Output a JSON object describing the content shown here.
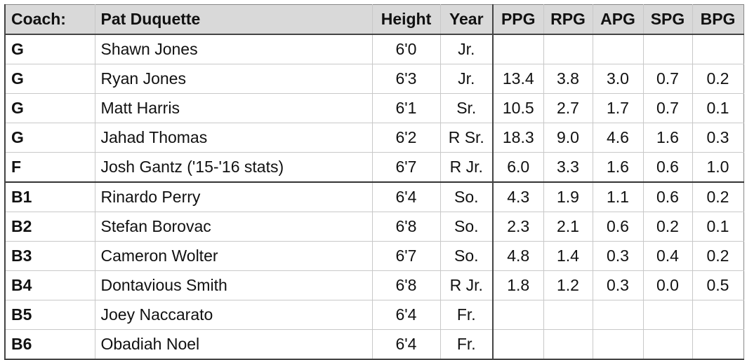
{
  "header": {
    "coach_label": "Coach:",
    "coach_name": "Pat Duquette",
    "height": "Height",
    "year": "Year",
    "stats": [
      "PPG",
      "RPG",
      "APG",
      "SPG",
      "BPG"
    ]
  },
  "players": [
    {
      "pos": "G",
      "name": "Shawn Jones",
      "height": "6'0",
      "year": "Jr.",
      "stats": [
        "",
        "",
        "",
        "",
        ""
      ]
    },
    {
      "pos": "G",
      "name": "Ryan Jones",
      "height": "6'3",
      "year": "Jr.",
      "stats": [
        "13.4",
        "3.8",
        "3.0",
        "0.7",
        "0.2"
      ]
    },
    {
      "pos": "G",
      "name": "Matt Harris",
      "height": "6'1",
      "year": "Sr.",
      "stats": [
        "10.5",
        "2.7",
        "1.7",
        "0.7",
        "0.1"
      ]
    },
    {
      "pos": "G",
      "name": "Jahad Thomas",
      "height": "6'2",
      "year": "R Sr.",
      "stats": [
        "18.3",
        "9.0",
        "4.6",
        "1.6",
        "0.3"
      ]
    },
    {
      "pos": "F",
      "name": "Josh Gantz ('15-'16 stats)",
      "height": "6'7",
      "year": "R Jr.",
      "stats": [
        "6.0",
        "3.3",
        "1.6",
        "0.6",
        "1.0"
      ]
    },
    {
      "pos": "B1",
      "name": "Rinardo Perry",
      "height": "6'4",
      "year": "So.",
      "stats": [
        "4.3",
        "1.9",
        "1.1",
        "0.6",
        "0.2"
      ]
    },
    {
      "pos": "B2",
      "name": "Stefan Borovac",
      "height": "6'8",
      "year": "So.",
      "stats": [
        "2.3",
        "2.1",
        "0.6",
        "0.2",
        "0.1"
      ]
    },
    {
      "pos": "B3",
      "name": "Cameron Wolter",
      "height": "6'7",
      "year": "So.",
      "stats": [
        "4.8",
        "1.4",
        "0.3",
        "0.4",
        "0.2"
      ]
    },
    {
      "pos": "B4",
      "name": "Dontavious Smith",
      "height": "6'8",
      "year": "R Jr.",
      "stats": [
        "1.8",
        "1.2",
        "0.3",
        "0.0",
        "0.5"
      ]
    },
    {
      "pos": "B5",
      "name": "Joey Naccarato",
      "height": "6'4",
      "year": "Fr.",
      "stats": [
        "",
        "",
        "",
        "",
        ""
      ]
    },
    {
      "pos": "B6",
      "name": "Obadiah Noel",
      "height": "6'4",
      "year": "Fr.",
      "stats": [
        "",
        "",
        "",
        "",
        ""
      ]
    }
  ]
}
